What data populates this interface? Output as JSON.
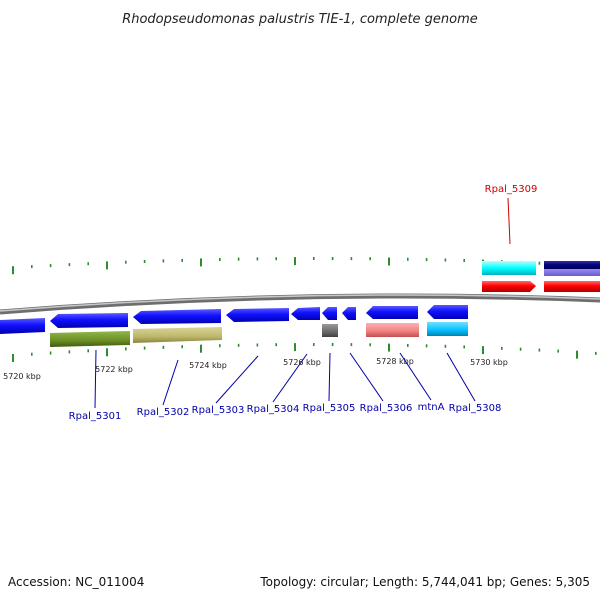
{
  "title": "Rhodopseudomonas palustris TIE-1, complete genome",
  "footer": {
    "accession": "Accession: NC_011004",
    "stats": "Topology: circular; Length: 5,744,041 bp; Genes: 5,305"
  },
  "scale": {
    "labels": [
      "5720 kbp",
      "5722 kbp",
      "5724 kbp",
      "5726 kbp",
      "5728 kbp",
      "5730 kbp"
    ]
  },
  "genes": [
    {
      "name": "Rpal_5301",
      "color": "#6b8e23"
    },
    {
      "name": "Rpal_5302",
      "color": "#bdb76b"
    },
    {
      "name": "Rpal_5303",
      "color": "#0000ff"
    },
    {
      "name": "Rpal_5304",
      "color": "#0000ff"
    },
    {
      "name": "Rpal_5305",
      "color": "#696969"
    },
    {
      "name": "Rpal_5306",
      "color": "#f08080"
    },
    {
      "name": "mtnA",
      "color": "#00bfff"
    },
    {
      "name": "Rpal_5308",
      "color": "#0000ff"
    },
    {
      "name": "Rpal_5309",
      "color": "#ff0000"
    }
  ],
  "colors": {
    "forward_cds": "#0000ff",
    "backbone": "#8c8c8c",
    "ticks": "#2e8b2e",
    "label_reverse": "#0000aa",
    "label_forward": "#cc0000"
  }
}
